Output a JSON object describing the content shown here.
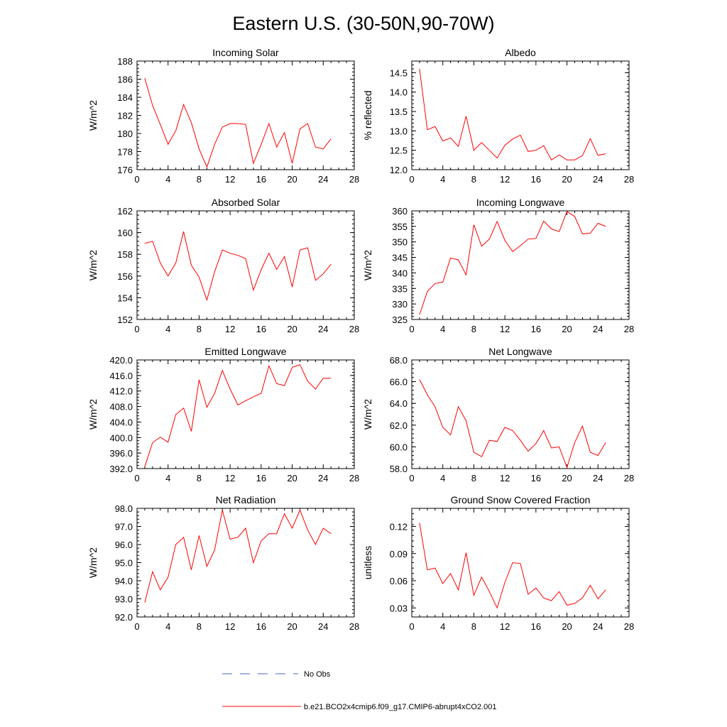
{
  "figure": {
    "title": "Eastern U.S. (30-50N,90-70W)"
  },
  "colors": {
    "model_line": "#ff0000",
    "obs_line": "#4a63c8",
    "axis": "#000000"
  },
  "legend": {
    "obs_label": "No Obs",
    "model_label": "b.e21.BCO2x4cmip6.f09_g17.CMIP6-abrupt4xCO2.001"
  },
  "chart_data": [
    {
      "type": "line",
      "title": "Incoming Solar",
      "ylabel": "W/m^2",
      "xlabel": "",
      "xlim": [
        0,
        28
      ],
      "xticks": [
        0,
        4,
        8,
        12,
        16,
        20,
        24,
        28
      ],
      "ylim": [
        176,
        188
      ],
      "yticks": [
        "176",
        "178",
        "180",
        "182",
        "184",
        "186",
        "188"
      ],
      "x": [
        1,
        2,
        3,
        4,
        5,
        6,
        7,
        8,
        9,
        10,
        11,
        12,
        13,
        14,
        15,
        16,
        17,
        18,
        19,
        20,
        21,
        22,
        23,
        24,
        25
      ],
      "series": [
        {
          "name": "b.e21.BCO2x4cmip6.f09_g17.CMIP6-abrupt4xCO2.001",
          "values": [
            186.1,
            183.1,
            181.0,
            178.8,
            180.3,
            183.2,
            181.2,
            178.3,
            176.3,
            178.8,
            180.7,
            181.1,
            181.1,
            181.0,
            176.7,
            178.8,
            181.1,
            178.5,
            180.1,
            176.7,
            180.5,
            181.1,
            178.5,
            178.3,
            179.4
          ]
        }
      ]
    },
    {
      "type": "line",
      "title": "Albedo",
      "ylabel": "% reflected",
      "xlabel": "",
      "xlim": [
        0,
        28
      ],
      "xticks": [
        0,
        4,
        8,
        12,
        16,
        20,
        24,
        28
      ],
      "ylim": [
        12.0,
        14.8
      ],
      "yticks": [
        "12.0",
        "12.5",
        "13.0",
        "13.5",
        "14.0",
        "14.5"
      ],
      "x": [
        1,
        2,
        3,
        4,
        5,
        6,
        7,
        8,
        9,
        10,
        11,
        12,
        13,
        14,
        15,
        16,
        17,
        18,
        19,
        20,
        21,
        22,
        23,
        24,
        25
      ],
      "series": [
        {
          "name": "b.e21.BCO2x4cmip6.f09_g17.CMIP6-abrupt4xCO2.001",
          "values": [
            14.6,
            13.03,
            13.11,
            12.74,
            12.82,
            12.6,
            13.38,
            12.5,
            12.7,
            12.5,
            12.3,
            12.63,
            12.79,
            12.89,
            12.47,
            12.5,
            12.62,
            12.25,
            12.38,
            12.25,
            12.25,
            12.36,
            12.8,
            12.37,
            12.41
          ]
        }
      ]
    },
    {
      "type": "line",
      "title": "Absorbed Solar",
      "ylabel": "W/m^2",
      "xlabel": "",
      "xlim": [
        0,
        28
      ],
      "xticks": [
        0,
        4,
        8,
        12,
        16,
        20,
        24,
        28
      ],
      "ylim": [
        152,
        162
      ],
      "yticks": [
        "152",
        "154",
        "156",
        "158",
        "160",
        "162"
      ],
      "x": [
        1,
        2,
        3,
        4,
        5,
        6,
        7,
        8,
        9,
        10,
        11,
        12,
        13,
        14,
        15,
        16,
        17,
        18,
        19,
        20,
        21,
        22,
        23,
        24,
        25
      ],
      "series": [
        {
          "name": "b.e21.BCO2x4cmip6.f09_g17.CMIP6-abrupt4xCO2.001",
          "values": [
            159.0,
            159.2,
            157.2,
            156.0,
            157.2,
            160.1,
            157.0,
            155.9,
            153.8,
            156.4,
            158.4,
            158.1,
            157.9,
            157.6,
            154.7,
            156.6,
            158.1,
            156.6,
            157.8,
            155.0,
            158.4,
            158.6,
            155.6,
            156.2,
            157.1
          ]
        }
      ]
    },
    {
      "type": "line",
      "title": "Incoming Longwave",
      "ylabel": "W/m^2",
      "xlabel": "",
      "xlim": [
        0,
        28
      ],
      "xticks": [
        0,
        4,
        8,
        12,
        16,
        20,
        24,
        28
      ],
      "ylim": [
        325,
        360
      ],
      "yticks": [
        "325",
        "330",
        "335",
        "340",
        "345",
        "350",
        "355",
        "360"
      ],
      "x": [
        1,
        2,
        3,
        4,
        5,
        6,
        7,
        8,
        9,
        10,
        11,
        12,
        13,
        14,
        15,
        16,
        17,
        18,
        19,
        20,
        21,
        22,
        23,
        24,
        25
      ],
      "series": [
        {
          "name": "b.e21.BCO2x4cmip6.f09_g17.CMIP6-abrupt4xCO2.001",
          "values": [
            326.5,
            334.0,
            336.6,
            337.0,
            344.8,
            344.2,
            339.4,
            355.5,
            348.6,
            350.9,
            356.6,
            350.5,
            346.9,
            348.8,
            350.9,
            351.1,
            356.7,
            354.2,
            353.3,
            359.8,
            358.2,
            352.6,
            352.8,
            356.0,
            355.0
          ]
        }
      ]
    },
    {
      "type": "line",
      "title": "Emitted Longwave",
      "ylabel": "W/m^2",
      "xlabel": "",
      "xlim": [
        0,
        28
      ],
      "xticks": [
        0,
        4,
        8,
        12,
        16,
        20,
        24,
        28
      ],
      "ylim": [
        392.0,
        420.0
      ],
      "yticks": [
        "392.0",
        "396.0",
        "400.0",
        "404.0",
        "408.0",
        "412.0",
        "416.0",
        "420.0"
      ],
      "x": [
        1,
        2,
        3,
        4,
        5,
        6,
        7,
        8,
        9,
        10,
        11,
        12,
        13,
        14,
        15,
        16,
        17,
        18,
        19,
        20,
        21,
        22,
        23,
        24,
        25
      ],
      "series": [
        {
          "name": "b.e21.BCO2x4cmip6.f09_g17.CMIP6-abrupt4xCO2.001",
          "values": [
            392.5,
            398.7,
            400.1,
            398.8,
            405.9,
            407.6,
            401.6,
            414.9,
            407.8,
            411.4,
            417.3,
            412.5,
            408.4,
            409.5,
            410.5,
            411.4,
            418.5,
            413.9,
            413.4,
            418.1,
            418.8,
            414.5,
            412.5,
            415.3,
            415.3
          ]
        }
      ]
    },
    {
      "type": "line",
      "title": "Net Longwave",
      "ylabel": "W/m^2",
      "xlabel": "",
      "xlim": [
        0,
        28
      ],
      "xticks": [
        0,
        4,
        8,
        12,
        16,
        20,
        24,
        28
      ],
      "ylim": [
        58.0,
        68.0
      ],
      "yticks": [
        "58.0",
        "60.0",
        "62.0",
        "64.0",
        "66.0",
        "68.0"
      ],
      "x": [
        1,
        2,
        3,
        4,
        5,
        6,
        7,
        8,
        9,
        10,
        11,
        12,
        13,
        14,
        15,
        16,
        17,
        18,
        19,
        20,
        21,
        22,
        23,
        24,
        25
      ],
      "series": [
        {
          "name": "b.e21.BCO2x4cmip6.f09_g17.CMIP6-abrupt4xCO2.001",
          "values": [
            66.2,
            64.8,
            63.7,
            61.8,
            61.1,
            63.7,
            62.4,
            59.5,
            59.1,
            60.6,
            60.5,
            61.8,
            61.5,
            60.6,
            59.6,
            60.3,
            61.5,
            59.9,
            60.0,
            58.1,
            60.4,
            61.9,
            59.5,
            59.2,
            60.4
          ]
        }
      ]
    },
    {
      "type": "line",
      "title": "Net Radiation",
      "ylabel": "W/m^2",
      "xlabel": "",
      "xlim": [
        0,
        28
      ],
      "xticks": [
        0,
        4,
        8,
        12,
        16,
        20,
        24,
        28
      ],
      "ylim": [
        92.0,
        98.0
      ],
      "yticks": [
        "92.0",
        "93.0",
        "94.0",
        "95.0",
        "96.0",
        "97.0",
        "98.0"
      ],
      "x": [
        1,
        2,
        3,
        4,
        5,
        6,
        7,
        8,
        9,
        10,
        11,
        12,
        13,
        14,
        15,
        16,
        17,
        18,
        19,
        20,
        21,
        22,
        23,
        24,
        25
      ],
      "series": [
        {
          "name": "b.e21.BCO2x4cmip6.f09_g17.CMIP6-abrupt4xCO2.001",
          "values": [
            92.8,
            94.5,
            93.5,
            94.2,
            96.0,
            96.4,
            94.6,
            96.5,
            94.8,
            95.7,
            97.9,
            96.3,
            96.4,
            96.9,
            95.0,
            96.2,
            96.6,
            96.6,
            97.7,
            96.9,
            97.9,
            96.8,
            96.0,
            96.9,
            96.6
          ]
        }
      ]
    },
    {
      "type": "line",
      "title": "Ground Snow Covered Fraction",
      "ylabel": "unitless",
      "xlabel": "",
      "xlim": [
        0,
        28
      ],
      "xticks": [
        0,
        4,
        8,
        12,
        16,
        20,
        24,
        28
      ],
      "ylim": [
        0.02,
        0.14
      ],
      "yticks": [
        "0.03",
        "0.06",
        "0.09",
        "0.12"
      ],
      "ytickvals": [
        0.03,
        0.06,
        0.09,
        0.12
      ],
      "x": [
        1,
        2,
        3,
        4,
        5,
        6,
        7,
        8,
        9,
        10,
        11,
        12,
        13,
        14,
        15,
        16,
        17,
        18,
        19,
        20,
        21,
        22,
        23,
        24,
        25
      ],
      "series": [
        {
          "name": "b.e21.BCO2x4cmip6.f09_g17.CMIP6-abrupt4xCO2.001",
          "values": [
            0.124,
            0.072,
            0.074,
            0.057,
            0.068,
            0.05,
            0.091,
            0.044,
            0.064,
            0.048,
            0.03,
            0.058,
            0.08,
            0.079,
            0.045,
            0.052,
            0.041,
            0.038,
            0.048,
            0.033,
            0.035,
            0.041,
            0.055,
            0.04,
            0.05
          ]
        }
      ]
    }
  ]
}
